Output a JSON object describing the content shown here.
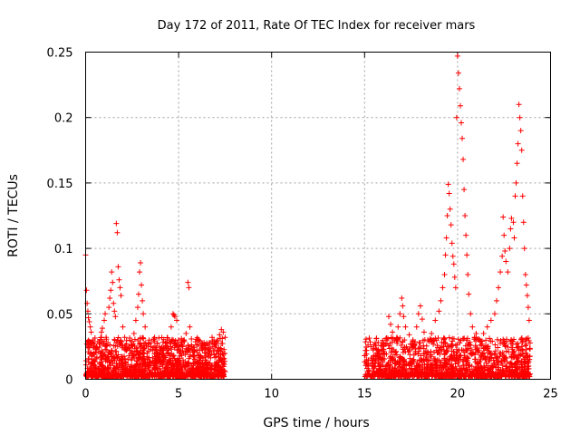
{
  "chart_data": {
    "type": "scatter",
    "title": "Day 172 of 2011, Rate Of TEC Index for receiver mars",
    "xlabel": "GPS time / hours",
    "ylabel": "ROTI / TECUs",
    "xlim": [
      0,
      25
    ],
    "ylim": [
      0,
      0.25
    ],
    "xticks": [
      0,
      5,
      10,
      15,
      20,
      25
    ],
    "xtick_labels": [
      "0",
      "5",
      "10",
      "15",
      "20",
      "25"
    ],
    "yticks": [
      0,
      0.05,
      0.1,
      0.15,
      0.2,
      0.25
    ],
    "ytick_labels": [
      "0",
      "0.05",
      "0.1",
      "0.15",
      "0.2",
      "0.25"
    ],
    "grid": true,
    "marker": "+",
    "color": "#ff0000",
    "series": [
      {
        "name": "ROTI",
        "points": [
          [
            0.0,
            0.095
          ],
          [
            0.05,
            0.068
          ],
          [
            0.08,
            0.058
          ],
          [
            0.12,
            0.052
          ],
          [
            0.15,
            0.047
          ],
          [
            0.2,
            0.044
          ],
          [
            0.25,
            0.04
          ],
          [
            0.3,
            0.036
          ],
          [
            0.35,
            0.028
          ],
          [
            0.4,
            0.03
          ],
          [
            0.5,
            0.027
          ],
          [
            0.6,
            0.024
          ],
          [
            0.7,
            0.021
          ],
          [
            0.8,
            0.03
          ],
          [
            0.85,
            0.036
          ],
          [
            0.9,
            0.039
          ],
          [
            1.0,
            0.045
          ],
          [
            1.05,
            0.05
          ],
          [
            1.1,
            0.032
          ],
          [
            1.2,
            0.028
          ],
          [
            1.25,
            0.055
          ],
          [
            1.3,
            0.062
          ],
          [
            1.35,
            0.068
          ],
          [
            1.4,
            0.082
          ],
          [
            1.45,
            0.074
          ],
          [
            1.5,
            0.058
          ],
          [
            1.55,
            0.052
          ],
          [
            1.6,
            0.048
          ],
          [
            1.65,
            0.119
          ],
          [
            1.7,
            0.112
          ],
          [
            1.75,
            0.086
          ],
          [
            1.8,
            0.076
          ],
          [
            1.85,
            0.07
          ],
          [
            1.9,
            0.064
          ],
          [
            2.0,
            0.04
          ],
          [
            2.1,
            0.032
          ],
          [
            2.2,
            0.027
          ],
          [
            2.3,
            0.024
          ],
          [
            2.4,
            0.022
          ],
          [
            2.5,
            0.029
          ],
          [
            2.6,
            0.035
          ],
          [
            2.7,
            0.045
          ],
          [
            2.8,
            0.055
          ],
          [
            2.85,
            0.065
          ],
          [
            2.9,
            0.082
          ],
          [
            2.95,
            0.089
          ],
          [
            3.0,
            0.072
          ],
          [
            3.05,
            0.06
          ],
          [
            3.1,
            0.05
          ],
          [
            3.2,
            0.04
          ],
          [
            3.4,
            0.028
          ],
          [
            3.6,
            0.022
          ],
          [
            3.8,
            0.02
          ],
          [
            4.0,
            0.022
          ],
          [
            4.2,
            0.018
          ],
          [
            4.4,
            0.025
          ],
          [
            4.5,
            0.03
          ],
          [
            4.6,
            0.04
          ],
          [
            4.7,
            0.05
          ],
          [
            4.75,
            0.049
          ],
          [
            4.8,
            0.048
          ],
          [
            4.9,
            0.045
          ],
          [
            5.0,
            0.03
          ],
          [
            5.1,
            0.022
          ],
          [
            5.2,
            0.025
          ],
          [
            5.3,
            0.03
          ],
          [
            5.4,
            0.035
          ],
          [
            5.5,
            0.074
          ],
          [
            5.55,
            0.07
          ],
          [
            5.6,
            0.04
          ],
          [
            5.7,
            0.025
          ],
          [
            5.8,
            0.018
          ],
          [
            6.0,
            0.014
          ],
          [
            6.2,
            0.016
          ],
          [
            6.4,
            0.02
          ],
          [
            6.6,
            0.024
          ],
          [
            6.7,
            0.028
          ],
          [
            6.8,
            0.032
          ],
          [
            6.9,
            0.03
          ],
          [
            7.0,
            0.026
          ],
          [
            7.1,
            0.03
          ],
          [
            7.2,
            0.034
          ],
          [
            7.3,
            0.038
          ],
          [
            7.4,
            0.036
          ],
          [
            7.5,
            0.032
          ],
          [
            15.0,
            0.018
          ],
          [
            15.05,
            0.022
          ],
          [
            15.1,
            0.014
          ],
          [
            15.2,
            0.01
          ],
          [
            15.4,
            0.012
          ],
          [
            15.6,
            0.014
          ],
          [
            15.8,
            0.016
          ],
          [
            16.0,
            0.02
          ],
          [
            16.2,
            0.03
          ],
          [
            16.3,
            0.048
          ],
          [
            16.4,
            0.042
          ],
          [
            16.5,
            0.036
          ],
          [
            16.6,
            0.03
          ],
          [
            16.8,
            0.04
          ],
          [
            16.9,
            0.05
          ],
          [
            17.0,
            0.062
          ],
          [
            17.05,
            0.056
          ],
          [
            17.1,
            0.048
          ],
          [
            17.2,
            0.04
          ],
          [
            17.4,
            0.034
          ],
          [
            17.6,
            0.03
          ],
          [
            17.8,
            0.04
          ],
          [
            17.9,
            0.05
          ],
          [
            18.0,
            0.056
          ],
          [
            18.1,
            0.046
          ],
          [
            18.2,
            0.036
          ],
          [
            18.4,
            0.03
          ],
          [
            18.6,
            0.035
          ],
          [
            18.8,
            0.045
          ],
          [
            19.0,
            0.052
          ],
          [
            19.1,
            0.06
          ],
          [
            19.2,
            0.07
          ],
          [
            19.3,
            0.08
          ],
          [
            19.35,
            0.095
          ],
          [
            19.4,
            0.108
          ],
          [
            19.45,
            0.125
          ],
          [
            19.5,
            0.149
          ],
          [
            19.55,
            0.142
          ],
          [
            19.6,
            0.13
          ],
          [
            19.65,
            0.118
          ],
          [
            19.7,
            0.104
          ],
          [
            19.75,
            0.094
          ],
          [
            19.8,
            0.088
          ],
          [
            19.85,
            0.078
          ],
          [
            19.9,
            0.07
          ],
          [
            19.95,
            0.2
          ],
          [
            20.0,
            0.247
          ],
          [
            20.05,
            0.234
          ],
          [
            20.1,
            0.222
          ],
          [
            20.15,
            0.209
          ],
          [
            20.2,
            0.196
          ],
          [
            20.25,
            0.184
          ],
          [
            20.3,
            0.168
          ],
          [
            20.35,
            0.145
          ],
          [
            20.4,
            0.125
          ],
          [
            20.45,
            0.11
          ],
          [
            20.5,
            0.095
          ],
          [
            20.55,
            0.08
          ],
          [
            20.6,
            0.065
          ],
          [
            20.7,
            0.05
          ],
          [
            20.8,
            0.04
          ],
          [
            21.0,
            0.035
          ],
          [
            21.2,
            0.03
          ],
          [
            21.4,
            0.035
          ],
          [
            21.6,
            0.04
          ],
          [
            21.8,
            0.045
          ],
          [
            22.0,
            0.05
          ],
          [
            22.1,
            0.06
          ],
          [
            22.2,
            0.07
          ],
          [
            22.3,
            0.082
          ],
          [
            22.4,
            0.094
          ],
          [
            22.45,
            0.124
          ],
          [
            22.5,
            0.11
          ],
          [
            22.55,
            0.098
          ],
          [
            22.6,
            0.09
          ],
          [
            22.7,
            0.082
          ],
          [
            22.8,
            0.1
          ],
          [
            22.85,
            0.115
          ],
          [
            22.9,
            0.123
          ],
          [
            23.0,
            0.12
          ],
          [
            23.05,
            0.108
          ],
          [
            23.1,
            0.14
          ],
          [
            23.15,
            0.15
          ],
          [
            23.2,
            0.165
          ],
          [
            23.25,
            0.18
          ],
          [
            23.3,
            0.21
          ],
          [
            23.35,
            0.2
          ],
          [
            23.4,
            0.19
          ],
          [
            23.45,
            0.175
          ],
          [
            23.5,
            0.14
          ],
          [
            23.55,
            0.12
          ],
          [
            23.6,
            0.1
          ],
          [
            23.65,
            0.08
          ],
          [
            23.7,
            0.072
          ],
          [
            23.75,
            0.064
          ],
          [
            23.8,
            0.055
          ],
          [
            23.85,
            0.045
          ]
        ]
      }
    ]
  }
}
